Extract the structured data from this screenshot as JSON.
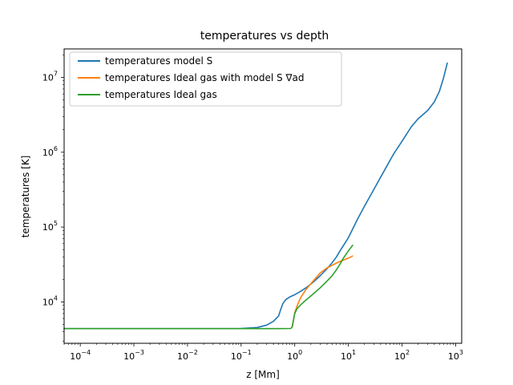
{
  "chart_data": {
    "type": "line",
    "title": "temperatures vs depth",
    "xlabel": "z [Mm]",
    "ylabel": "temperatures [K]",
    "xscale": "log",
    "yscale": "log",
    "xlim": [
      5e-05,
      1300
    ],
    "ylim": [
      2800,
      24000000
    ],
    "grid": false,
    "legend_position": "top-left",
    "x_ticks": [
      {
        "value": 0.0001,
        "base": "10",
        "exp": "−4"
      },
      {
        "value": 0.001,
        "base": "10",
        "exp": "−3"
      },
      {
        "value": 0.01,
        "base": "10",
        "exp": "−2"
      },
      {
        "value": 0.1,
        "base": "10",
        "exp": "−1"
      },
      {
        "value": 1,
        "base": "10",
        "exp": "0"
      },
      {
        "value": 10,
        "base": "10",
        "exp": "1"
      },
      {
        "value": 100,
        "base": "10",
        "exp": "2"
      },
      {
        "value": 1000,
        "base": "10",
        "exp": "3"
      }
    ],
    "y_ticks": [
      {
        "value": 10000,
        "base": "10",
        "exp": "4"
      },
      {
        "value": 100000,
        "base": "10",
        "exp": "5"
      },
      {
        "value": 1000000,
        "base": "10",
        "exp": "6"
      },
      {
        "value": 10000000,
        "base": "10",
        "exp": "7"
      }
    ],
    "series": [
      {
        "name": "temperatures model S",
        "color": "#1f77b4",
        "x": [
          5e-05,
          0.001,
          0.05,
          0.1,
          0.2,
          0.3,
          0.4,
          0.5,
          0.55,
          0.6,
          0.65,
          0.7,
          0.8,
          1.0,
          1.3,
          1.7,
          2.2,
          3.0,
          4.0,
          5.0,
          6.0,
          7.0,
          8.5,
          10,
          15,
          20,
          30,
          50,
          70,
          100,
          150,
          200,
          300,
          400,
          500,
          600,
          700
        ],
        "y": [
          4400,
          4400,
          4400,
          4420,
          4550,
          4900,
          5500,
          6500,
          8000,
          9500,
          10300,
          10900,
          11600,
          12500,
          13900,
          15800,
          18300,
          22500,
          27800,
          33500,
          40000,
          48000,
          60000,
          72000,
          130000,
          190000,
          320000,
          620000,
          950000,
          1400000,
          2200000,
          2800000,
          3600000,
          4700000,
          6500000,
          10000000,
          15500000
        ]
      },
      {
        "name": "temperatures Ideal gas with model S ∇ad",
        "color": "#ff7f0e",
        "x": [
          0.9,
          1.0,
          1.15,
          1.3,
          1.6,
          2.0,
          2.5,
          3.0,
          4.0,
          5.0,
          6.0,
          7.0,
          8.0,
          10,
          12
        ],
        "y": [
          4600,
          7200,
          9500,
          11500,
          14500,
          17500,
          21000,
          24500,
          28500,
          31000,
          33000,
          34800,
          36000,
          38500,
          41000
        ]
      },
      {
        "name": "temperatures Ideal gas",
        "color": "#2ca02c",
        "x": [
          5e-05,
          0.001,
          0.05,
          0.5,
          0.85,
          0.9,
          0.95,
          1.0,
          1.1,
          1.3,
          1.6,
          2.0,
          2.5,
          3.0,
          4.0,
          5.0,
          6.0,
          7.0,
          8.0,
          10,
          12
        ],
        "y": [
          4400,
          4400,
          4400,
          4400,
          4420,
          4700,
          5800,
          7000,
          8100,
          9200,
          10500,
          12000,
          13800,
          15500,
          19000,
          22500,
          27000,
          32000,
          38000,
          48000,
          57000
        ]
      }
    ]
  }
}
